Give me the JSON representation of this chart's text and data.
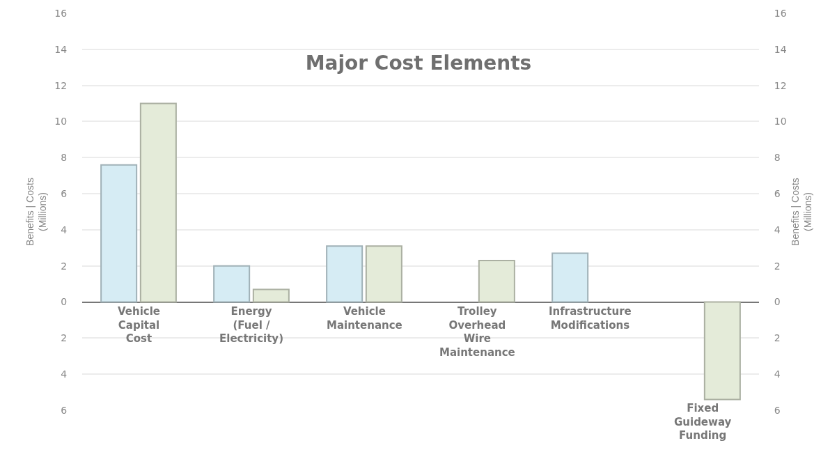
{
  "chart_data": {
    "type": "bar",
    "title": "Major Cost Elements",
    "ylabel": "Benefits | Costs\n(Millions)",
    "y2label": "Benefits | Costs\n(Millions)",
    "categories": [
      "Vehicle\nCapital\nCost",
      "Energy\n(Fuel /\nElectricity)",
      "Vehicle\nMaintenance",
      "Trolley\nOverhead\nWire\nMaintenance",
      "Infrastructure\nModifications",
      "Fixed\nGuideway\nFunding"
    ],
    "series": [
      {
        "color": "#d6ecf4",
        "values": [
          7.6,
          2.0,
          3.1,
          null,
          2.7,
          null
        ]
      },
      {
        "color": "#e4ebd9",
        "values": [
          11.0,
          0.7,
          3.1,
          2.3,
          null,
          -5.4
        ]
      }
    ],
    "ylim": [
      -6,
      16
    ],
    "yticks": [
      {
        "value": -6,
        "label": "6"
      },
      {
        "value": -4,
        "label": "4"
      },
      {
        "value": -2,
        "label": "2"
      },
      0,
      2,
      4,
      6,
      8,
      10,
      12,
      14,
      16
    ],
    "y2lim": [
      -6,
      16
    ],
    "y2ticks": [
      {
        "value": -6,
        "label": "6"
      },
      {
        "value": -4,
        "label": "4"
      },
      {
        "value": -2,
        "label": "2"
      },
      0,
      2,
      4,
      6,
      8,
      10,
      12,
      14,
      16
    ],
    "grid": "y"
  }
}
